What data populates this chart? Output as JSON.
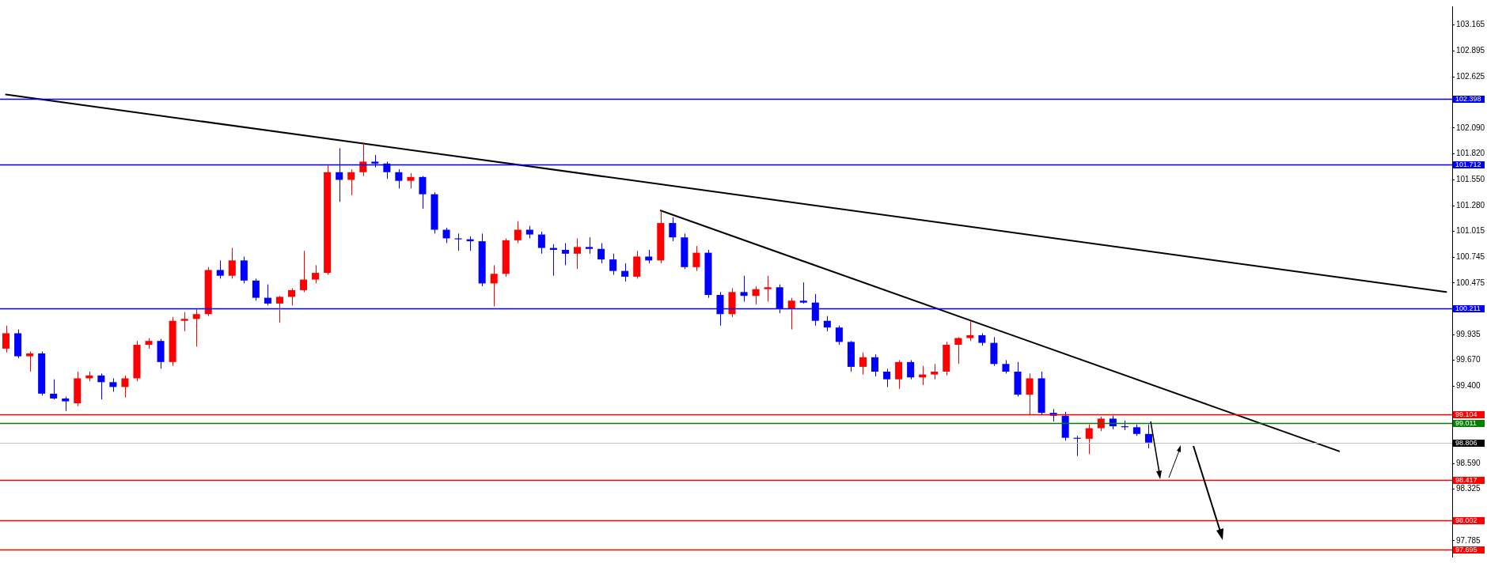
{
  "chart_data": {
    "type": "candlestick",
    "categories": [
      null,
      null,
      null,
      null,
      null,
      null,
      null,
      null,
      null,
      null,
      null,
      null,
      null,
      null,
      null,
      null,
      null,
      null,
      null,
      null,
      null,
      null,
      null,
      null,
      null,
      null,
      null,
      null,
      null,
      null,
      null,
      null,
      null,
      null,
      null,
      null,
      null,
      null,
      null,
      null,
      null,
      null,
      null,
      null,
      null,
      null,
      null,
      null,
      null,
      null,
      null,
      null,
      null,
      null,
      null,
      null,
      null,
      null,
      null,
      null,
      null,
      null,
      null,
      null,
      null,
      null,
      null,
      null,
      null,
      null,
      null,
      null,
      null,
      null,
      null,
      null,
      null,
      null,
      null,
      null,
      null,
      null,
      null,
      null,
      null,
      null,
      null,
      null,
      null,
      null,
      null,
      null,
      null,
      null,
      null,
      null,
      null,
      null,
      null,
      null,
      null,
      null,
      null,
      null,
      null,
      null,
      null,
      null,
      null,
      null,
      null,
      null,
      null,
      null,
      null,
      null,
      null,
      null,
      null,
      null,
      null,
      null
    ],
    "ohlc": [
      [
        99.79,
        100.03,
        99.75,
        99.95
      ],
      [
        99.95,
        99.99,
        99.69,
        99.71
      ],
      [
        99.71,
        99.76,
        99.55,
        99.74
      ],
      [
        99.74,
        99.76,
        99.3,
        99.32
      ],
      [
        99.32,
        99.47,
        99.26,
        99.27
      ],
      [
        99.27,
        99.29,
        99.14,
        99.24
      ],
      [
        99.22,
        99.55,
        99.19,
        99.48
      ],
      [
        99.48,
        99.55,
        99.45,
        99.51
      ],
      [
        99.51,
        99.53,
        99.26,
        99.44
      ],
      [
        99.44,
        99.48,
        99.34,
        99.39
      ],
      [
        99.39,
        99.51,
        99.28,
        99.48
      ],
      [
        99.48,
        99.87,
        99.45,
        99.83
      ],
      [
        99.83,
        99.9,
        99.79,
        99.87
      ],
      [
        99.87,
        99.89,
        99.58,
        99.65
      ],
      [
        99.65,
        100.12,
        99.61,
        100.08
      ],
      [
        100.08,
        100.17,
        99.97,
        100.1
      ],
      [
        100.1,
        100.2,
        99.81,
        100.15
      ],
      [
        100.15,
        100.64,
        100.13,
        100.61
      ],
      [
        100.61,
        100.71,
        100.52,
        100.55
      ],
      [
        100.55,
        100.84,
        100.52,
        100.71
      ],
      [
        100.71,
        100.75,
        100.47,
        100.5
      ],
      [
        100.5,
        100.52,
        100.29,
        100.32
      ],
      [
        100.32,
        100.46,
        100.24,
        100.26
      ],
      [
        100.26,
        100.34,
        100.06,
        100.33
      ],
      [
        100.33,
        100.42,
        100.24,
        100.4
      ],
      [
        100.4,
        100.81,
        100.38,
        100.51
      ],
      [
        100.51,
        100.66,
        100.47,
        100.58
      ],
      [
        100.58,
        101.7,
        100.56,
        101.63
      ],
      [
        101.63,
        101.88,
        101.32,
        101.55
      ],
      [
        101.55,
        101.66,
        101.39,
        101.63
      ],
      [
        101.63,
        101.94,
        101.59,
        101.74
      ],
      [
        101.74,
        101.81,
        101.68,
        101.72
      ],
      [
        101.72,
        101.74,
        101.56,
        101.63
      ],
      [
        101.63,
        101.66,
        101.46,
        101.54
      ],
      [
        101.54,
        101.62,
        101.46,
        101.58
      ],
      [
        101.58,
        101.59,
        101.25,
        101.4
      ],
      [
        101.4,
        101.42,
        100.99,
        101.03
      ],
      [
        101.03,
        101.05,
        100.89,
        100.94
      ],
      [
        100.94,
        100.99,
        100.81,
        100.93
      ],
      [
        100.93,
        100.96,
        100.81,
        100.91
      ],
      [
        100.91,
        100.99,
        100.44,
        100.47
      ],
      [
        100.47,
        100.66,
        100.23,
        100.57
      ],
      [
        100.57,
        100.94,
        100.54,
        100.92
      ],
      [
        100.92,
        101.12,
        100.89,
        101.03
      ],
      [
        101.03,
        101.07,
        100.94,
        100.98
      ],
      [
        100.98,
        101.01,
        100.78,
        100.84
      ],
      [
        100.84,
        100.88,
        100.55,
        100.82
      ],
      [
        100.82,
        100.89,
        100.66,
        100.78
      ],
      [
        100.78,
        100.94,
        100.62,
        100.85
      ],
      [
        100.85,
        100.95,
        100.78,
        100.83
      ],
      [
        100.83,
        100.89,
        100.68,
        100.72
      ],
      [
        100.72,
        100.78,
        100.56,
        100.6
      ],
      [
        100.6,
        100.68,
        100.49,
        100.54
      ],
      [
        100.54,
        100.81,
        100.52,
        100.75
      ],
      [
        100.75,
        100.82,
        100.68,
        100.71
      ],
      [
        100.71,
        101.23,
        100.68,
        101.1
      ],
      [
        101.1,
        101.16,
        100.91,
        100.95
      ],
      [
        100.95,
        100.99,
        100.62,
        100.64
      ],
      [
        100.64,
        100.86,
        100.6,
        100.79
      ],
      [
        100.79,
        100.82,
        100.32,
        100.35
      ],
      [
        100.35,
        100.38,
        100.03,
        100.15
      ],
      [
        100.15,
        100.42,
        100.12,
        100.38
      ],
      [
        100.38,
        100.55,
        100.28,
        100.34
      ],
      [
        100.34,
        100.44,
        100.25,
        100.41
      ],
      [
        100.41,
        100.55,
        100.28,
        100.43
      ],
      [
        100.43,
        100.46,
        100.16,
        100.21
      ],
      [
        100.21,
        100.32,
        99.99,
        100.29
      ],
      [
        100.29,
        100.48,
        100.26,
        100.27
      ],
      [
        100.27,
        100.36,
        100.03,
        100.08
      ],
      [
        100.08,
        100.13,
        99.97,
        100.01
      ],
      [
        100.01,
        100.03,
        99.83,
        99.86
      ],
      [
        99.86,
        99.87,
        99.55,
        99.6
      ],
      [
        99.6,
        99.75,
        99.52,
        99.7
      ],
      [
        99.7,
        99.73,
        99.5,
        99.55
      ],
      [
        99.55,
        99.58,
        99.39,
        99.47
      ],
      [
        99.47,
        99.67,
        99.37,
        99.65
      ],
      [
        99.65,
        99.67,
        99.47,
        99.49
      ],
      [
        99.49,
        99.61,
        99.41,
        99.52
      ],
      [
        99.52,
        99.63,
        99.47,
        99.55
      ],
      [
        99.55,
        99.86,
        99.51,
        99.83
      ],
      [
        99.83,
        99.91,
        99.63,
        99.9
      ],
      [
        99.9,
        100.08,
        99.87,
        99.93
      ],
      [
        99.93,
        99.95,
        99.82,
        99.85
      ],
      [
        99.85,
        99.91,
        99.61,
        99.63
      ],
      [
        99.63,
        99.67,
        99.53,
        99.55
      ],
      [
        99.55,
        99.65,
        99.29,
        99.31
      ],
      [
        99.31,
        99.53,
        99.1,
        99.48
      ],
      [
        99.48,
        99.55,
        99.1,
        99.12
      ],
      [
        99.12,
        99.16,
        99.03,
        99.09
      ],
      [
        99.09,
        99.13,
        98.83,
        98.86
      ],
      [
        98.86,
        98.88,
        98.67,
        98.85
      ],
      [
        98.85,
        99.0,
        98.69,
        98.96
      ],
      [
        98.96,
        99.08,
        98.93,
        99.06
      ],
      [
        99.06,
        99.09,
        98.95,
        98.98
      ],
      [
        98.98,
        99.04,
        98.94,
        98.97
      ],
      [
        98.97,
        99.0,
        98.88,
        98.9
      ],
      [
        98.9,
        99.0,
        98.75,
        98.81
      ],
      null,
      null,
      null,
      null,
      null,
      null,
      null,
      null,
      null,
      null,
      null,
      null,
      null,
      null,
      null,
      null,
      null,
      null,
      null,
      null,
      null,
      null,
      null,
      null,
      null
    ],
    "colors": [
      "#ff0000",
      "#0000ff",
      "#ff0000",
      "#0000ff",
      "#0000ff",
      "#0000ff",
      "#ff0000",
      "#ff0000",
      "#0000ff",
      "#0000ff",
      "#ff0000",
      "#ff0000",
      "#ff0000",
      "#0000ff",
      "#ff0000",
      "#ff0000",
      "#ff0000",
      "#ff0000",
      "#0000ff",
      "#ff0000",
      "#0000ff",
      "#0000ff",
      "#0000ff",
      "#ff0000",
      "#ff0000",
      "#ff0000",
      "#ff0000",
      "#ff0000",
      "#0000ff",
      "#ff0000",
      "#ff0000",
      "#0000ff",
      "#0000ff",
      "#0000ff",
      "#ff0000",
      "#0000ff",
      "#0000ff",
      "#0000ff",
      "#0000ff",
      "#0000ff",
      "#0000ff",
      "#ff0000",
      "#ff0000",
      "#ff0000",
      "#0000ff",
      "#0000ff",
      "#0000ff",
      "#0000ff",
      "#ff0000",
      "#0000ff",
      "#0000ff",
      "#0000ff",
      "#0000ff",
      "#ff0000",
      "#0000ff",
      "#ff0000",
      "#0000ff",
      "#0000ff",
      "#ff0000",
      "#0000ff",
      "#0000ff",
      "#ff0000",
      "#0000ff",
      "#ff0000",
      "#ff0000",
      "#0000ff",
      "#ff0000",
      "#0000ff",
      "#0000ff",
      "#0000ff",
      "#0000ff",
      "#0000ff",
      "#ff0000",
      "#0000ff",
      "#0000ff",
      "#ff0000",
      "#0000ff",
      "#ff0000",
      "#ff0000",
      "#ff0000",
      "#ff0000",
      "#ff0000",
      "#0000ff",
      "#0000ff",
      "#0000ff",
      "#0000ff",
      "#ff0000",
      "#0000ff",
      "#0000ff",
      "#0000ff",
      "#0000ff",
      "#ff0000",
      "#ff0000",
      "#0000ff",
      "#0000ff",
      "#0000ff",
      "#0000ff",
      null,
      null,
      null,
      null,
      null,
      null,
      null,
      null,
      null,
      null,
      null,
      null,
      null,
      null,
      null,
      null,
      null,
      null,
      null,
      null,
      null,
      null,
      null,
      null,
      null
    ],
    "series": [
      {
        "type": "line",
        "color": "#000000",
        "values": [
          102.44,
          null,
          null,
          null,
          null,
          null,
          null,
          null,
          null,
          null,
          null,
          null,
          null,
          null,
          null,
          null,
          null,
          null,
          null,
          null,
          null,
          null,
          null,
          null,
          null,
          null,
          null,
          null,
          null,
          null,
          null,
          null,
          null,
          null,
          null,
          null,
          null,
          null,
          null,
          null,
          null,
          null,
          null,
          null,
          null,
          null,
          null,
          null,
          null,
          null,
          null,
          null,
          null,
          null,
          null,
          null,
          null,
          null,
          null,
          null,
          null,
          null,
          null,
          null,
          null,
          null,
          null,
          null,
          null,
          null,
          null,
          null,
          null,
          null,
          null,
          null,
          null,
          null,
          null,
          null,
          null,
          null,
          null,
          null,
          null,
          null,
          null,
          null,
          null,
          null,
          null,
          null,
          null,
          null,
          null,
          null,
          null,
          null,
          null,
          null,
          null,
          null,
          null,
          null,
          null,
          null,
          null,
          null,
          null,
          null,
          null,
          null,
          null,
          null,
          null,
          null,
          null,
          null,
          null,
          null,
          null,
          100.38
        ]
      },
      {
        "type": "line",
        "color": "#000000",
        "values": [
          null,
          null,
          null,
          null,
          null,
          null,
          null,
          null,
          null,
          null,
          null,
          null,
          null,
          null,
          null,
          null,
          null,
          null,
          null,
          null,
          null,
          null,
          null,
          null,
          null,
          null,
          null,
          null,
          null,
          null,
          null,
          null,
          null,
          null,
          null,
          null,
          null,
          null,
          null,
          null,
          null,
          null,
          null,
          null,
          null,
          null,
          null,
          null,
          null,
          null,
          null,
          null,
          null,
          null,
          null,
          101.23,
          null,
          null,
          null,
          null,
          null,
          null,
          null,
          null,
          null,
          null,
          null,
          null,
          null,
          null,
          null,
          null,
          null,
          null,
          null,
          null,
          null,
          null,
          null,
          null,
          null,
          null,
          null,
          null,
          null,
          null,
          null,
          null,
          null,
          null,
          null,
          null,
          null,
          null,
          null,
          null,
          null,
          null,
          null,
          null,
          null,
          null,
          null,
          null,
          null,
          null,
          null,
          null,
          null,
          null,
          null,
          null,
          98.72,
          null,
          null,
          null,
          null,
          null,
          null,
          null,
          null,
          null
        ]
      }
    ],
    "ylim": [
      97.62,
      103.36
    ],
    "yticks": [
      {
        "value": 103.165,
        "label": "103.165"
      },
      {
        "value": 102.895,
        "label": "102.895"
      },
      {
        "value": 102.625,
        "label": "102.625"
      },
      {
        "value": 102.09,
        "label": "102.090"
      },
      {
        "value": 101.82,
        "label": "101.820"
      },
      {
        "value": 101.55,
        "label": "101.550"
      },
      {
        "value": 101.28,
        "label": "101.280"
      },
      {
        "value": 101.015,
        "label": "101.015"
      },
      {
        "value": 100.745,
        "label": "100.745"
      },
      {
        "value": 100.475,
        "label": "100.475"
      },
      {
        "value": 99.935,
        "label": "99.935"
      },
      {
        "value": 99.67,
        "label": "99.670"
      },
      {
        "value": 99.4,
        "label": "99.400"
      },
      {
        "value": 98.59,
        "label": "98.590"
      },
      {
        "value": 98.325,
        "label": "98.325"
      },
      {
        "value": 97.785,
        "label": "97.785"
      }
    ],
    "ref_lines": [
      {
        "axis": "y",
        "value": 102.398,
        "label": "102.398",
        "color": "#0000ff"
      },
      {
        "axis": "y",
        "value": 101.712,
        "label": "101.712",
        "color": "#0000ff"
      },
      {
        "axis": "y",
        "value": 100.211,
        "label": "100.211",
        "color": "#0000ff"
      },
      {
        "axis": "y",
        "value": 99.104,
        "label": "99.104",
        "color": "#ff0000"
      },
      {
        "axis": "y",
        "value": 99.011,
        "label": "99.011",
        "color": "#008000"
      },
      {
        "axis": "y",
        "value": 98.806,
        "label": "98.806",
        "color": "#c0c0c0"
      },
      {
        "axis": "y",
        "value": 98.417,
        "label": "98.417",
        "color": "#ff0000"
      },
      {
        "axis": "y",
        "value": 98.002,
        "label": "98.002",
        "color": "#ff0000"
      },
      {
        "axis": "y",
        "value": 97.695,
        "label": "97.695",
        "color": "#ff0000"
      }
    ],
    "tick_labels": "y",
    "legend": false
  }
}
